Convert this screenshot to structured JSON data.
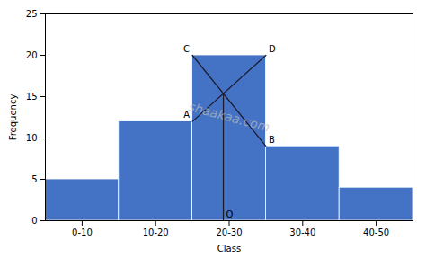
{
  "chart_data": {
    "type": "histogram",
    "bins": [
      0,
      10,
      20,
      30,
      40,
      50
    ],
    "values": [
      5,
      12,
      20,
      9,
      4
    ],
    "color": "#4472c4",
    "xlabel": "Class",
    "ylabel": "Frequency",
    "xlim": [
      0,
      50
    ],
    "ylim": [
      0,
      25
    ],
    "yticks": [
      0,
      5,
      10,
      15,
      20,
      25
    ],
    "xticks": [
      {
        "value": 5,
        "label": "0-10"
      },
      {
        "value": 15,
        "label": "10-20"
      },
      {
        "value": 25,
        "label": "20-30"
      },
      {
        "value": 35,
        "label": "30-40"
      },
      {
        "value": 45,
        "label": "40-50"
      }
    ],
    "lines": [
      {
        "color": "#1a1a2e",
        "x": [
          20,
          30
        ],
        "y": [
          12,
          20
        ]
      },
      {
        "color": "#1a1a2e",
        "x": [
          20,
          30
        ],
        "y": [
          20,
          9
        ]
      },
      {
        "color": "#1a1a2e",
        "x": [
          24.210526315789473,
          24.210526315789473
        ],
        "y": [
          0,
          15.368421052631579
        ]
      }
    ],
    "point_labels": [
      {
        "text": "A",
        "x": 20,
        "y": 12
      },
      {
        "text": "C",
        "x": 20,
        "y": 20
      },
      {
        "text": "D",
        "x": 30,
        "y": 20
      },
      {
        "text": "B",
        "x": 30,
        "y": 9
      },
      {
        "text": "Q",
        "x": 24.210526315789473,
        "y": 0
      }
    ],
    "annotations": [
      {
        "text": "shaakaa.com",
        "color": "#bbbbbb"
      }
    ]
  }
}
